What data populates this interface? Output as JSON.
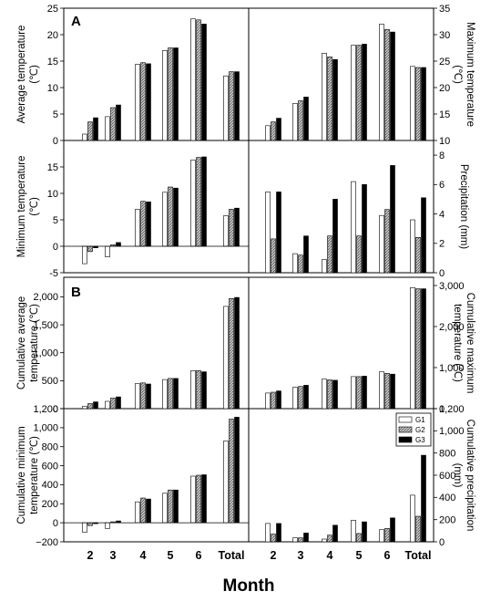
{
  "figure": {
    "panel_letters": [
      "A",
      "B"
    ],
    "x_title": "Month",
    "x_categories": [
      "2",
      "3",
      "4",
      "5",
      "6",
      "Total"
    ],
    "legend": [
      "G1",
      "G2",
      "G3"
    ]
  },
  "chart_data": [
    {
      "id": "avg_temp",
      "type": "bar",
      "panel": "A",
      "ylabel": [
        "Average temperature",
        "(℃)"
      ],
      "ylim": [
        0,
        25
      ],
      "yticks": [
        0,
        5,
        10,
        15,
        20,
        25
      ],
      "tick_labels": [
        "0",
        "5",
        "10",
        "15",
        "20",
        "25"
      ],
      "axis_side": "left",
      "baseline": 0,
      "categories": [
        "2",
        "3",
        "4",
        "5",
        "6",
        "Total"
      ],
      "series": [
        {
          "name": "G1",
          "values": [
            1.2,
            4.5,
            14.4,
            17.0,
            23.0,
            12.2
          ]
        },
        {
          "name": "G2",
          "values": [
            3.5,
            6.2,
            14.7,
            17.5,
            22.8,
            13.0
          ]
        },
        {
          "name": "G3",
          "values": [
            4.3,
            6.7,
            14.5,
            17.5,
            22.0,
            13.0
          ]
        }
      ]
    },
    {
      "id": "max_temp",
      "type": "bar",
      "panel": "A",
      "ylabel": [
        "Maximum temperature",
        "(℃)"
      ],
      "ylim": [
        10,
        35
      ],
      "yticks": [
        10,
        15,
        20,
        25,
        30,
        35
      ],
      "tick_labels": [
        "10",
        "15",
        "20",
        "25",
        "30",
        "35"
      ],
      "axis_side": "right",
      "baseline": 10,
      "categories": [
        "2",
        "3",
        "4",
        "5",
        "6",
        "Total"
      ],
      "series": [
        {
          "name": "G1",
          "values": [
            12.8,
            17.0,
            26.5,
            28.0,
            32.0,
            24.0
          ]
        },
        {
          "name": "G2",
          "values": [
            13.5,
            17.5,
            25.8,
            28.0,
            31.0,
            23.8
          ]
        },
        {
          "name": "G3",
          "values": [
            14.2,
            18.2,
            25.3,
            28.2,
            30.5,
            23.8
          ]
        }
      ]
    },
    {
      "id": "min_temp",
      "type": "bar",
      "panel": "A",
      "ylabel": [
        "Minimum temperature",
        "(℃)"
      ],
      "ylim": [
        -5,
        20
      ],
      "yticks": [
        -5,
        0,
        5,
        10,
        15
      ],
      "tick_labels": [
        "-5",
        "0",
        "5",
        "10",
        "15"
      ],
      "axis_side": "left",
      "baseline": 0,
      "categories": [
        "2",
        "3",
        "4",
        "5",
        "6",
        "Total"
      ],
      "series": [
        {
          "name": "G1",
          "values": [
            -3.3,
            -2.0,
            7.0,
            10.2,
            16.3,
            5.8
          ]
        },
        {
          "name": "G2",
          "values": [
            -1.0,
            0.3,
            8.5,
            11.2,
            16.8,
            7.0
          ]
        },
        {
          "name": "G3",
          "values": [
            -0.3,
            0.7,
            8.4,
            11.0,
            16.9,
            7.2
          ]
        }
      ]
    },
    {
      "id": "precipitation",
      "type": "bar",
      "panel": "A",
      "ylabel": [
        "Precipitation (mm)"
      ],
      "ylim": [
        0,
        9
      ],
      "yticks": [
        0,
        2,
        4,
        6,
        8
      ],
      "tick_labels": [
        "0",
        "2",
        "4",
        "6",
        "8"
      ],
      "axis_side": "right",
      "baseline": 0,
      "categories": [
        "2",
        "3",
        "4",
        "5",
        "6",
        "Total"
      ],
      "series": [
        {
          "name": "G1",
          "values": [
            5.5,
            1.3,
            0.9,
            6.2,
            3.9,
            3.6
          ]
        },
        {
          "name": "G2",
          "values": [
            2.3,
            1.2,
            2.5,
            2.5,
            4.3,
            2.4
          ]
        },
        {
          "name": "G3",
          "values": [
            5.5,
            2.5,
            5.0,
            6.0,
            7.3,
            5.1
          ]
        }
      ]
    },
    {
      "id": "cum_avg_temp",
      "type": "bar",
      "panel": "B",
      "ylabel": [
        "Cumulative average",
        "temperature (℃)"
      ],
      "ylim": [
        0,
        2350
      ],
      "yticks": [
        0,
        500,
        1000,
        1500,
        2000
      ],
      "tick_labels": [
        "0",
        "500",
        "1,000",
        "1,500",
        "2,000"
      ],
      "axis_side": "left",
      "baseline": 0,
      "categories": [
        "2",
        "3",
        "4",
        "5",
        "6",
        "Total"
      ],
      "series": [
        {
          "name": "G1",
          "values": [
            40,
            130,
            450,
            520,
            680,
            1830
          ]
        },
        {
          "name": "G2",
          "values": [
            90,
            190,
            460,
            540,
            680,
            1970
          ]
        },
        {
          "name": "G3",
          "values": [
            120,
            210,
            440,
            540,
            660,
            1990
          ]
        }
      ]
    },
    {
      "id": "cum_max_temp",
      "type": "bar",
      "panel": "B",
      "ylabel": [
        "Cumulative maximum",
        "temperature (℃)"
      ],
      "ylim": [
        0,
        3200
      ],
      "yticks": [
        0,
        1000,
        2000,
        3000
      ],
      "tick_labels": [
        "0",
        "1,000",
        "2,000",
        "3,000"
      ],
      "axis_side": "right",
      "baseline": 0,
      "categories": [
        "2",
        "3",
        "4",
        "5",
        "6",
        "Total"
      ],
      "series": [
        {
          "name": "G1",
          "values": [
            380,
            520,
            720,
            780,
            900,
            2950
          ]
        },
        {
          "name": "G2",
          "values": [
            400,
            540,
            700,
            780,
            860,
            2920
          ]
        },
        {
          "name": "G3",
          "values": [
            430,
            570,
            690,
            790,
            840,
            2920
          ]
        }
      ]
    },
    {
      "id": "cum_min_temp",
      "type": "bar",
      "panel": "B",
      "ylabel": [
        "Cumulative minimum",
        "temperature (℃)"
      ],
      "ylim": [
        -200,
        1200
      ],
      "yticks": [
        -200,
        0,
        200,
        400,
        600,
        800,
        1000,
        1200
      ],
      "tick_labels": [
        "−200",
        "0",
        "200",
        "400",
        "600",
        "800",
        "1,000",
        "1,200"
      ],
      "axis_side": "left",
      "baseline": 0,
      "categories": [
        "2",
        "3",
        "4",
        "5",
        "6",
        "Total"
      ],
      "series": [
        {
          "name": "G1",
          "values": [
            -100,
            -60,
            220,
            310,
            490,
            860
          ]
        },
        {
          "name": "G2",
          "values": [
            -30,
            10,
            260,
            345,
            500,
            1090
          ]
        },
        {
          "name": "G3",
          "values": [
            -10,
            20,
            250,
            345,
            505,
            1110
          ]
        }
      ]
    },
    {
      "id": "cum_precip",
      "type": "bar",
      "panel": "B",
      "ylabel": [
        "Cumulative precipitation",
        "(mm)"
      ],
      "ylim": [
        0,
        1200
      ],
      "yticks": [
        0,
        200,
        400,
        600,
        800,
        1000,
        1200
      ],
      "tick_labels": [
        "0",
        "200",
        "400",
        "600",
        "800",
        "1,000",
        "1,200"
      ],
      "axis_side": "right",
      "baseline": 0,
      "categories": [
        "2",
        "3",
        "4",
        "5",
        "6",
        "Total"
      ],
      "series": [
        {
          "name": "G1",
          "values": [
            165,
            35,
            25,
            195,
            110,
            420
          ]
        },
        {
          "name": "G2",
          "values": [
            70,
            35,
            60,
            75,
            120,
            230
          ]
        },
        {
          "name": "G3",
          "values": [
            165,
            80,
            150,
            180,
            215,
            780
          ]
        }
      ]
    }
  ]
}
